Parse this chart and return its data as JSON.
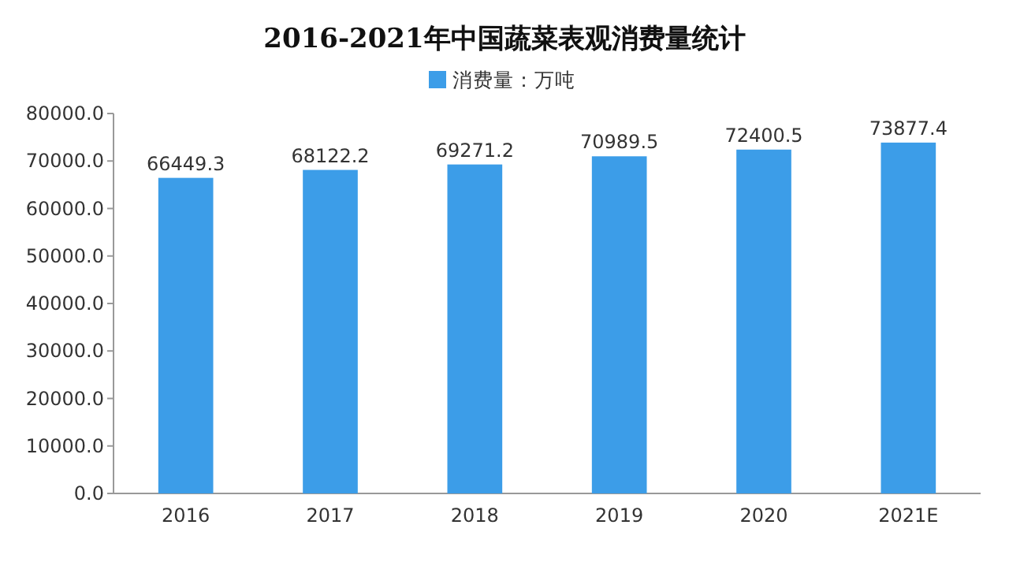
{
  "chart_data": {
    "type": "bar",
    "title": "2016-2021年中国蔬菜表观消费量统计",
    "categories": [
      "2016",
      "2017",
      "2018",
      "2019",
      "2020",
      "2021E"
    ],
    "series": [
      {
        "name": "消费量：万吨",
        "color": "#3c9de8",
        "values": [
          66449.3,
          68122.2,
          69271.2,
          70989.5,
          72400.5,
          73877.4
        ]
      }
    ],
    "ylim": [
      0,
      80000
    ],
    "yticks": [
      {
        "value": 0,
        "label": "0.0"
      },
      {
        "value": 10000,
        "label": "10000.0"
      },
      {
        "value": 20000,
        "label": "20000.0"
      },
      {
        "value": 30000,
        "label": "30000.0"
      },
      {
        "value": 40000,
        "label": "40000.0"
      },
      {
        "value": 50000,
        "label": "50000.0"
      },
      {
        "value": 60000,
        "label": "60000.0"
      },
      {
        "value": 70000,
        "label": "70000.0"
      },
      {
        "value": 80000,
        "label": "80000.0"
      }
    ],
    "data_labels": true,
    "legend": "top"
  }
}
